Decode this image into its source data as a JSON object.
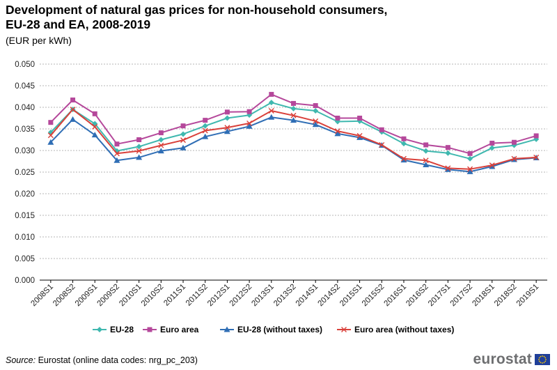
{
  "header": {
    "title_line1": "Development of natural gas prices for non-household consumers,",
    "title_line2": "EU-28 and EA, 2008-2019",
    "subtitle": "(EUR per kWh)"
  },
  "footer": {
    "source_label": "Source:",
    "source_text": "Eurostat (online data codes: nrg_pc_203)",
    "logo_text": "eurostat"
  },
  "chart_data": {
    "type": "line",
    "title": "Development of natural gas prices for non-household consumers, EU-28 and EA, 2008-2019",
    "ylabel": "(EUR per kWh)",
    "xlabel": "",
    "ylim": [
      0,
      0.05
    ],
    "yticks": [
      0.0,
      0.005,
      0.01,
      0.015,
      0.02,
      0.025,
      0.03,
      0.035,
      0.04,
      0.045,
      0.05
    ],
    "ytick_labels": [
      "0.000",
      "0.005",
      "0.010",
      "0.015",
      "0.020",
      "0.025",
      "0.030",
      "0.035",
      "0.040",
      "0.045",
      "0.050"
    ],
    "grid": "horizontal dotted",
    "legend": "bottom",
    "x": [
      "2008S1",
      "2008S2",
      "2009S1",
      "2009S2",
      "2010S1",
      "2010S2",
      "2011S1",
      "2011S2",
      "2012S1",
      "2012S2",
      "2013S1",
      "2013S2",
      "2014S1",
      "2014S2",
      "2015S1",
      "2015S2",
      "2016S1",
      "2016S2",
      "2017S1",
      "2017S2",
      "2018S1",
      "2018S2",
      "2019S1"
    ],
    "series": [
      {
        "name": "EU-28",
        "color": "#3fb8af",
        "marker": "diamond",
        "values": [
          0.0342,
          0.0395,
          0.0362,
          0.0299,
          0.0309,
          0.0325,
          0.0338,
          0.0357,
          0.0375,
          0.0382,
          0.0411,
          0.0397,
          0.0392,
          0.0367,
          0.0368,
          0.0343,
          0.0316,
          0.0299,
          0.0294,
          0.0281,
          0.0306,
          0.0312,
          0.0326
        ]
      },
      {
        "name": "Euro area",
        "color": "#b5489b",
        "marker": "square",
        "values": [
          0.0365,
          0.0417,
          0.0385,
          0.0315,
          0.0325,
          0.0341,
          0.0357,
          0.037,
          0.0389,
          0.039,
          0.043,
          0.0409,
          0.0404,
          0.0375,
          0.0375,
          0.0348,
          0.0327,
          0.0313,
          0.0307,
          0.0293,
          0.0317,
          0.0319,
          0.0334
        ]
      },
      {
        "name": "EU-28 (without taxes)",
        "color": "#2f6eb5",
        "marker": "triangle",
        "values": [
          0.0319,
          0.0372,
          0.0336,
          0.0277,
          0.0284,
          0.0299,
          0.0306,
          0.0332,
          0.0344,
          0.0356,
          0.0377,
          0.037,
          0.036,
          0.0339,
          0.033,
          0.0312,
          0.0278,
          0.0267,
          0.0256,
          0.0251,
          0.0263,
          0.0279,
          0.0283
        ]
      },
      {
        "name": "Euro area  (without taxes)",
        "color": "#d9403a",
        "marker": "x",
        "values": [
          0.0335,
          0.0395,
          0.0355,
          0.0293,
          0.0299,
          0.0312,
          0.0324,
          0.0346,
          0.0353,
          0.0363,
          0.0392,
          0.0381,
          0.0368,
          0.0345,
          0.0334,
          0.0313,
          0.0281,
          0.0277,
          0.0259,
          0.0257,
          0.0266,
          0.0281,
          0.0284
        ]
      }
    ]
  }
}
